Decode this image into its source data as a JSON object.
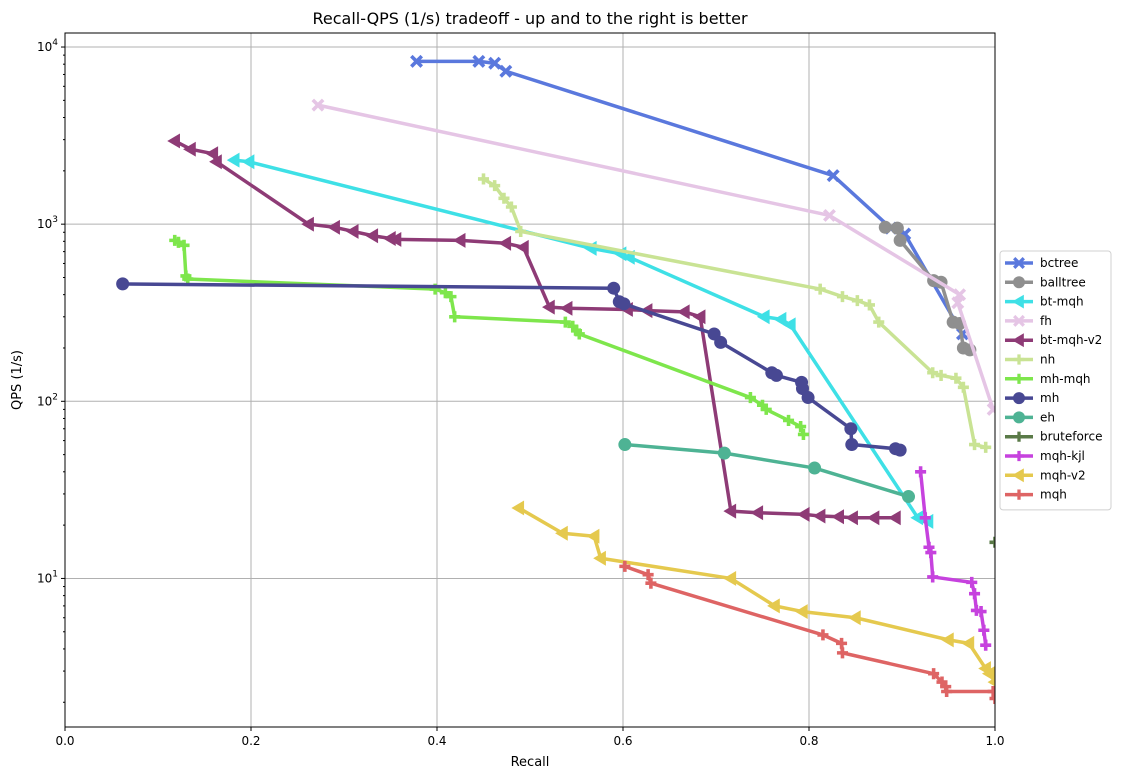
{
  "chart_data": {
    "type": "line",
    "title": "Recall-QPS (1/s) tradeoff - up and to the right is better",
    "xlabel": "Recall",
    "ylabel": "QPS (1/s)",
    "xlim": [
      0.0,
      1.0
    ],
    "ylim": [
      1.45,
      12000
    ],
    "yscale": "log",
    "grid": true,
    "legend": "right",
    "x_ticks": [
      "0.0",
      "0.2",
      "0.4",
      "0.6",
      "0.8",
      "1.0"
    ],
    "y_ticks": [
      {
        "base": "10",
        "exp": "1",
        "value": 10
      },
      {
        "base": "10",
        "exp": "2",
        "value": 100
      },
      {
        "base": "10",
        "exp": "3",
        "value": 1000
      },
      {
        "base": "10",
        "exp": "4",
        "value": 10000
      }
    ],
    "series": [
      {
        "name": "bctree",
        "color": "#5a78dd",
        "marker": "x",
        "points": [
          [
            0.378,
            8300
          ],
          [
            0.445,
            8300
          ],
          [
            0.462,
            8100
          ],
          [
            0.474,
            7300
          ],
          [
            0.826,
            1880
          ],
          [
            0.888,
            950
          ],
          [
            0.903,
            880
          ],
          [
            0.965,
            240
          ]
        ]
      },
      {
        "name": "balltree",
        "color": "#8f8f8f",
        "marker": "circle",
        "points": [
          [
            0.882,
            960
          ],
          [
            0.895,
            950
          ],
          [
            0.898,
            810
          ],
          [
            0.934,
            480
          ],
          [
            0.942,
            470
          ],
          [
            0.955,
            280
          ],
          [
            0.962,
            275
          ],
          [
            0.966,
            200
          ],
          [
            0.973,
            195
          ]
        ]
      },
      {
        "name": "bt-mqh",
        "color": "#3ee0e6",
        "marker": "tri-left",
        "points": [
          [
            0.182,
            2300
          ],
          [
            0.198,
            2250
          ],
          [
            0.566,
            730
          ],
          [
            0.598,
            680
          ],
          [
            0.607,
            650
          ],
          [
            0.752,
            300
          ],
          [
            0.77,
            290
          ],
          [
            0.78,
            270
          ],
          [
            0.917,
            22
          ],
          [
            0.928,
            21
          ]
        ]
      },
      {
        "name": "fh",
        "color": "#e5c5e5",
        "marker": "x",
        "points": [
          [
            0.272,
            4700
          ],
          [
            0.822,
            1120
          ],
          [
            0.962,
            400
          ],
          [
            0.96,
            360
          ],
          [
            0.998,
            90
          ]
        ]
      },
      {
        "name": "bt-mqh-v2",
        "color": "#8e3b76",
        "marker": "tri-left",
        "points": [
          [
            0.118,
            2950
          ],
          [
            0.135,
            2650
          ],
          [
            0.159,
            2500
          ],
          [
            0.163,
            2250
          ],
          [
            0.262,
            1000
          ],
          [
            0.29,
            960
          ],
          [
            0.31,
            910
          ],
          [
            0.331,
            860
          ],
          [
            0.35,
            830
          ],
          [
            0.356,
            820
          ],
          [
            0.425,
            810
          ],
          [
            0.474,
            780
          ],
          [
            0.493,
            740
          ],
          [
            0.521,
            340
          ],
          [
            0.54,
            335
          ],
          [
            0.605,
            330
          ],
          [
            0.626,
            325
          ],
          [
            0.666,
            320
          ],
          [
            0.683,
            300
          ],
          [
            0.716,
            24
          ],
          [
            0.745,
            23.5
          ],
          [
            0.795,
            23
          ],
          [
            0.812,
            22.5
          ],
          [
            0.832,
            22.3
          ],
          [
            0.847,
            22
          ],
          [
            0.87,
            22
          ],
          [
            0.893,
            22
          ]
        ]
      },
      {
        "name": "nh",
        "color": "#c9e394",
        "marker": "plus",
        "points": [
          [
            0.45,
            1800
          ],
          [
            0.462,
            1650
          ],
          [
            0.472,
            1400
          ],
          [
            0.48,
            1250
          ],
          [
            0.49,
            910
          ],
          [
            0.812,
            430
          ],
          [
            0.836,
            390
          ],
          [
            0.852,
            370
          ],
          [
            0.865,
            350
          ],
          [
            0.875,
            280
          ],
          [
            0.933,
            145
          ],
          [
            0.942,
            140
          ],
          [
            0.958,
            135
          ],
          [
            0.966,
            120
          ],
          [
            0.978,
            57
          ],
          [
            0.99,
            55
          ]
        ]
      },
      {
        "name": "mh-mqh",
        "color": "#7ee64c",
        "marker": "plus",
        "points": [
          [
            0.118,
            810
          ],
          [
            0.122,
            790
          ],
          [
            0.128,
            760
          ],
          [
            0.13,
            510
          ],
          [
            0.132,
            490
          ],
          [
            0.398,
            430
          ],
          [
            0.409,
            410
          ],
          [
            0.415,
            390
          ],
          [
            0.419,
            300
          ],
          [
            0.538,
            280
          ],
          [
            0.546,
            265
          ],
          [
            0.55,
            250
          ],
          [
            0.553,
            240
          ],
          [
            0.737,
            105
          ],
          [
            0.75,
            95
          ],
          [
            0.754,
            90
          ],
          [
            0.778,
            78
          ],
          [
            0.791,
            72
          ],
          [
            0.794,
            65
          ]
        ]
      },
      {
        "name": "mh",
        "color": "#484893",
        "marker": "circle",
        "points": [
          [
            0.062,
            460
          ],
          [
            0.59,
            435
          ],
          [
            0.596,
            365
          ],
          [
            0.601,
            355
          ],
          [
            0.698,
            240
          ],
          [
            0.705,
            215
          ],
          [
            0.76,
            145
          ],
          [
            0.765,
            140
          ],
          [
            0.792,
            128
          ],
          [
            0.793,
            118
          ],
          [
            0.799,
            105
          ],
          [
            0.845,
            70
          ],
          [
            0.846,
            57
          ],
          [
            0.893,
            54
          ],
          [
            0.898,
            53
          ]
        ]
      },
      {
        "name": "eh",
        "color": "#4eb394",
        "marker": "circle",
        "points": [
          [
            0.602,
            57
          ],
          [
            0.709,
            51
          ],
          [
            0.806,
            42
          ],
          [
            0.907,
            29
          ]
        ]
      },
      {
        "name": "bruteforce",
        "color": "#5a7a48",
        "marker": "plus",
        "points": [
          [
            1.0,
            16
          ]
        ]
      },
      {
        "name": "mqh-kjl",
        "color": "#c642de",
        "marker": "plus",
        "points": [
          [
            0.92,
            40
          ],
          [
            0.925,
            22
          ],
          [
            0.929,
            15
          ],
          [
            0.931,
            14
          ],
          [
            0.933,
            10.2
          ],
          [
            0.975,
            9.5
          ],
          [
            0.978,
            8.2
          ],
          [
            0.98,
            6.6
          ],
          [
            0.985,
            6.5
          ],
          [
            0.988,
            5.1
          ],
          [
            0.99,
            4.2
          ]
        ]
      },
      {
        "name": "mqh-v2",
        "color": "#e5c94e",
        "marker": "tri-left",
        "points": [
          [
            0.488,
            25
          ],
          [
            0.535,
            18
          ],
          [
            0.569,
            17.3
          ],
          [
            0.576,
            13
          ],
          [
            0.716,
            10
          ],
          [
            0.763,
            7
          ],
          [
            0.793,
            6.5
          ],
          [
            0.85,
            6
          ],
          [
            0.95,
            4.5
          ],
          [
            0.972,
            4.3
          ],
          [
            0.99,
            3.1
          ],
          [
            0.994,
            2.9
          ],
          [
            1.0,
            2.6
          ]
        ]
      },
      {
        "name": "mqh",
        "color": "#de6464",
        "marker": "plus",
        "points": [
          [
            0.602,
            11.7
          ],
          [
            0.627,
            10.5
          ],
          [
            0.63,
            9.4
          ],
          [
            0.815,
            4.8
          ],
          [
            0.835,
            4.3
          ],
          [
            0.836,
            3.8
          ],
          [
            0.934,
            2.9
          ],
          [
            0.943,
            2.6
          ],
          [
            0.947,
            2.45
          ],
          [
            0.948,
            2.3
          ],
          [
            0.998,
            2.3
          ],
          [
            1.0,
            2.1
          ]
        ]
      }
    ]
  }
}
